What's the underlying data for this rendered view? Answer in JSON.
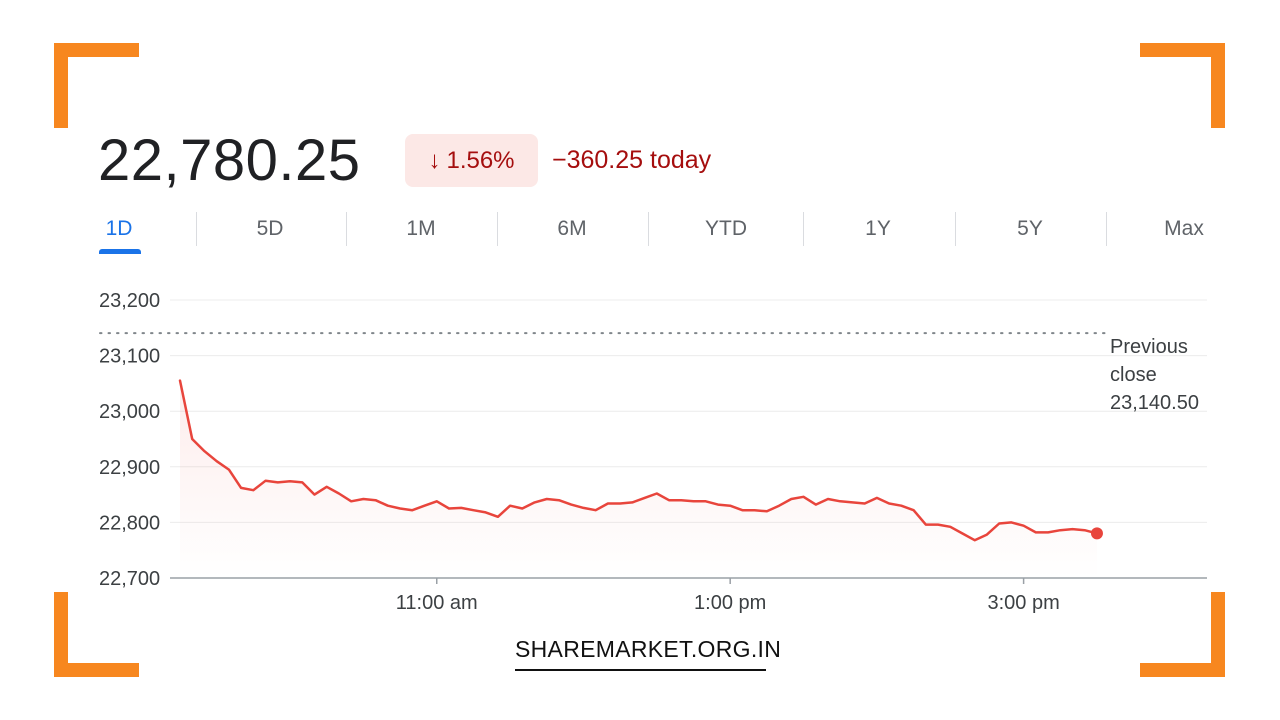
{
  "brand_color": "#f7871f",
  "quote": {
    "price": "22,780.25",
    "change_arrow": "↓",
    "change_percent": "1.56%",
    "change_today": "−360.25 today",
    "negative_color": "#a50e0e"
  },
  "tabs": [
    {
      "label": "1D",
      "active": true
    },
    {
      "label": "5D",
      "active": false
    },
    {
      "label": "1M",
      "active": false
    },
    {
      "label": "6M",
      "active": false
    },
    {
      "label": "YTD",
      "active": false
    },
    {
      "label": "1Y",
      "active": false
    },
    {
      "label": "5Y",
      "active": false
    },
    {
      "label": "Max",
      "active": false
    }
  ],
  "chart_data": {
    "type": "line",
    "title": "",
    "xlabel": "",
    "ylabel": "",
    "line_color": "#e8453c",
    "ylim": [
      22700,
      23200
    ],
    "y_ticks": [
      22700,
      22800,
      22900,
      23000,
      23100,
      23200
    ],
    "y_tick_labels": [
      "22,700",
      "22,800",
      "22,900",
      "23,000",
      "23,100",
      "23,200"
    ],
    "x_ticks": [
      {
        "value": "11:00",
        "label": "11:00 am"
      },
      {
        "value": "13:00",
        "label": "1:00 pm"
      },
      {
        "value": "15:00",
        "label": "3:00 pm"
      }
    ],
    "x_range": [
      "09:15",
      "16:15"
    ],
    "grid": true,
    "previous_close": {
      "value": 23140.5,
      "label_lines": [
        "Previous",
        "close",
        "23,140.50"
      ]
    },
    "series": [
      {
        "x": [
          "09:15",
          "09:20",
          "09:25",
          "09:30",
          "09:35",
          "09:40",
          "09:45",
          "09:50",
          "09:55",
          "10:00",
          "10:05",
          "10:10",
          "10:15",
          "10:20",
          "10:25",
          "10:30",
          "10:35",
          "10:40",
          "10:45",
          "10:50",
          "10:55",
          "11:00",
          "11:05",
          "11:10",
          "11:15",
          "11:20",
          "11:25",
          "11:30",
          "11:35",
          "11:40",
          "11:45",
          "11:50",
          "11:55",
          "12:00",
          "12:05",
          "12:10",
          "12:15",
          "12:20",
          "12:25",
          "12:30",
          "12:35",
          "12:40",
          "12:45",
          "12:50",
          "12:55",
          "13:00",
          "13:05",
          "13:10",
          "13:15",
          "13:20",
          "13:25",
          "13:30",
          "13:35",
          "13:40",
          "13:45",
          "13:50",
          "13:55",
          "14:00",
          "14:05",
          "14:10",
          "14:15",
          "14:20",
          "14:25",
          "14:30",
          "14:35",
          "14:40",
          "14:45",
          "14:50",
          "14:55",
          "15:00",
          "15:05",
          "15:10",
          "15:15",
          "15:20",
          "15:25",
          "15:30"
        ],
        "values": [
          23055,
          22950,
          22928,
          22910,
          22895,
          22862,
          22858,
          22875,
          22872,
          22874,
          22872,
          22850,
          22864,
          22852,
          22838,
          22842,
          22840,
          22830,
          22825,
          22822,
          22830,
          22838,
          22825,
          22826,
          22822,
          22818,
          22810,
          22830,
          22825,
          22836,
          22842,
          22840,
          22832,
          22826,
          22822,
          22834,
          22834,
          22836,
          22844,
          22852,
          22840,
          22840,
          22838,
          22838,
          22832,
          22830,
          22822,
          22822,
          22820,
          22830,
          22842,
          22846,
          22832,
          22842,
          22838,
          22836,
          22834,
          22844,
          22834,
          22830,
          22822,
          22796,
          22796,
          22792,
          22780,
          22768,
          22778,
          22798,
          22800,
          22794,
          22782,
          22782,
          22786,
          22788,
          22786,
          22780.25
        ]
      }
    ]
  },
  "watermark": "SHAREMARKET.ORG.IN"
}
